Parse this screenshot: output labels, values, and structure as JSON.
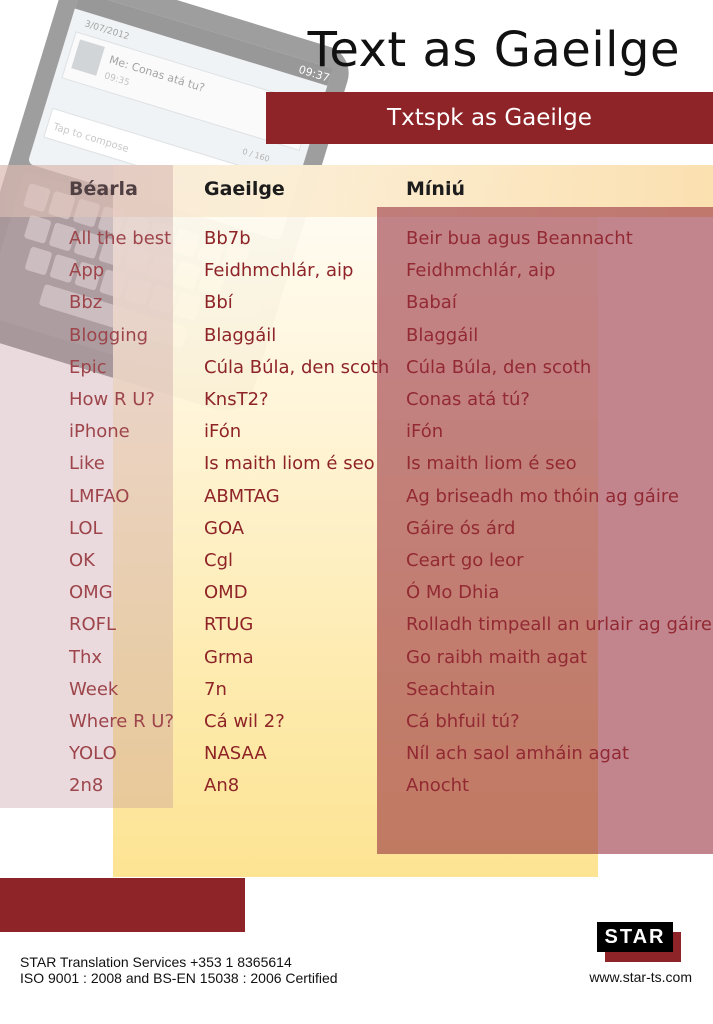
{
  "title": "Text as Gaeilge",
  "subtitle": "Txtspk as Gaeilge",
  "phone": {
    "time": "09:37",
    "date": "3/07/2012",
    "message_preview": "Me: Conas atá tu?",
    "message_time": "09:35",
    "char_count": "0 / 160",
    "compose_placeholder": "Tap to compose"
  },
  "table": {
    "headers": [
      "Béarla",
      "Gaeilge",
      "Míniú"
    ],
    "rows": [
      [
        "All the best",
        "Bb7b",
        "Beir bua agus Beannacht"
      ],
      [
        "App",
        "Feidhmchlár, aip",
        "Feidhmchlár, aip"
      ],
      [
        "Bbz",
        "Bbí",
        "Babaí"
      ],
      [
        "Blogging",
        "Blaggáil",
        "Blaggáil"
      ],
      [
        "Epic",
        "Cúla Búla, den scoth",
        "Cúla Búla, den scoth"
      ],
      [
        "How R U?",
        "KnsT2?",
        "Conas atá tú?"
      ],
      [
        "iPhone",
        "iFón",
        "iFón"
      ],
      [
        "Like",
        "Is maith liom é seo",
        "Is maith liom é seo"
      ],
      [
        "LMFAO",
        "ABMTAG",
        "Ag briseadh mo thóin ag gáire"
      ],
      [
        "LOL",
        "GOA",
        "Gáire ós árd"
      ],
      [
        "OK",
        "Cgl",
        "Ceart go leor"
      ],
      [
        "OMG",
        "OMD",
        "Ó Mo Dhia"
      ],
      [
        "ROFL",
        "RTUG",
        "Rolladh timpeall an urlair ag gáire"
      ],
      [
        "Thx",
        "Grma",
        "Go raibh maith agat"
      ],
      [
        "Week",
        "7n",
        "Seachtain"
      ],
      [
        "Where R U?",
        "Cá wil 2?",
        "Cá bhfuil tú?"
      ],
      [
        "YOLO",
        "NASAA",
        "Níl ach saol amháin agat"
      ],
      [
        "2n8",
        "An8",
        "Anocht"
      ]
    ]
  },
  "footer": {
    "line1": "STAR Translation Services +353 1 8365614",
    "line2": "ISO 9001 : 2008 and BS-EN 15038 : 2006 Certified",
    "website": "www.star-ts.com"
  },
  "logo": {
    "text": "STAR"
  },
  "colors": {
    "brand_red": "#8e2428",
    "text_dark": "#111111",
    "panel_yellow": "#fde9a7"
  }
}
